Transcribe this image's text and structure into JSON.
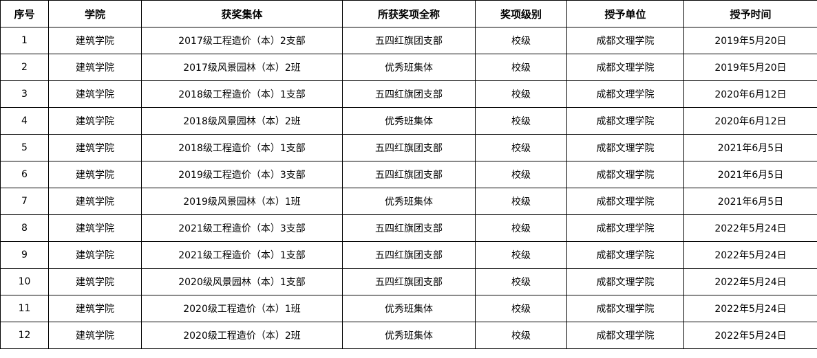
{
  "table": {
    "header": [
      "序号",
      "学院",
      "获奖集体",
      "所获奖项全称",
      "奖项级别",
      "授予单位",
      "授予时间"
    ],
    "rows": [
      [
        "1",
        "建筑学院",
        "2017级工程造价（本）2支部",
        "五四红旗团支部",
        "校级",
        "成都文理学院",
        "2019年5月20日"
      ],
      [
        "2",
        "建筑学院",
        "2017级风景园林（本）2班",
        "优秀班集体",
        "校级",
        "成都文理学院",
        "2019年5月20日"
      ],
      [
        "3",
        "建筑学院",
        "2018级工程造价（本）1支部",
        "五四红旗团支部",
        "校级",
        "成都文理学院",
        "2020年6月12日"
      ],
      [
        "4",
        "建筑学院",
        "2018级风景园林（本）2班",
        "优秀班集体",
        "校级",
        "成都文理学院",
        "2020年6月12日"
      ],
      [
        "5",
        "建筑学院",
        "2018级工程造价（本）1支部",
        "五四红旗团支部",
        "校级",
        "成都文理学院",
        "2021年6月5日"
      ],
      [
        "6",
        "建筑学院",
        "2019级工程造价（本）3支部",
        "五四红旗团支部",
        "校级",
        "成都文理学院",
        "2021年6月5日"
      ],
      [
        "7",
        "建筑学院",
        "2019级风景园林（本）1班",
        "优秀班集体",
        "校级",
        "成都文理学院",
        "2021年6月5日"
      ],
      [
        "8",
        "建筑学院",
        "2021级工程造价（本）3支部",
        "五四红旗团支部",
        "校级",
        "成都文理学院",
        "2022年5月24日"
      ],
      [
        "9",
        "建筑学院",
        "2021级工程造价（本）1支部",
        "五四红旗团支部",
        "校级",
        "成都文理学院",
        "2022年5月24日"
      ],
      [
        "10",
        "建筑学院",
        "2020级风景园林（本）1支部",
        "五四红旗团支部",
        "校级",
        "成都文理学院",
        "2022年5月24日"
      ],
      [
        "11",
        "建筑学院",
        "2020级工程造价（本）1班",
        "优秀班集体",
        "校级",
        "成都文理学院",
        "2022年5月24日"
      ],
      [
        "12",
        "建筑学院",
        "2020级工程造价（本）2班",
        "优秀班集体",
        "校级",
        "成都文理学院",
        "2022年5月24日"
      ]
    ]
  }
}
